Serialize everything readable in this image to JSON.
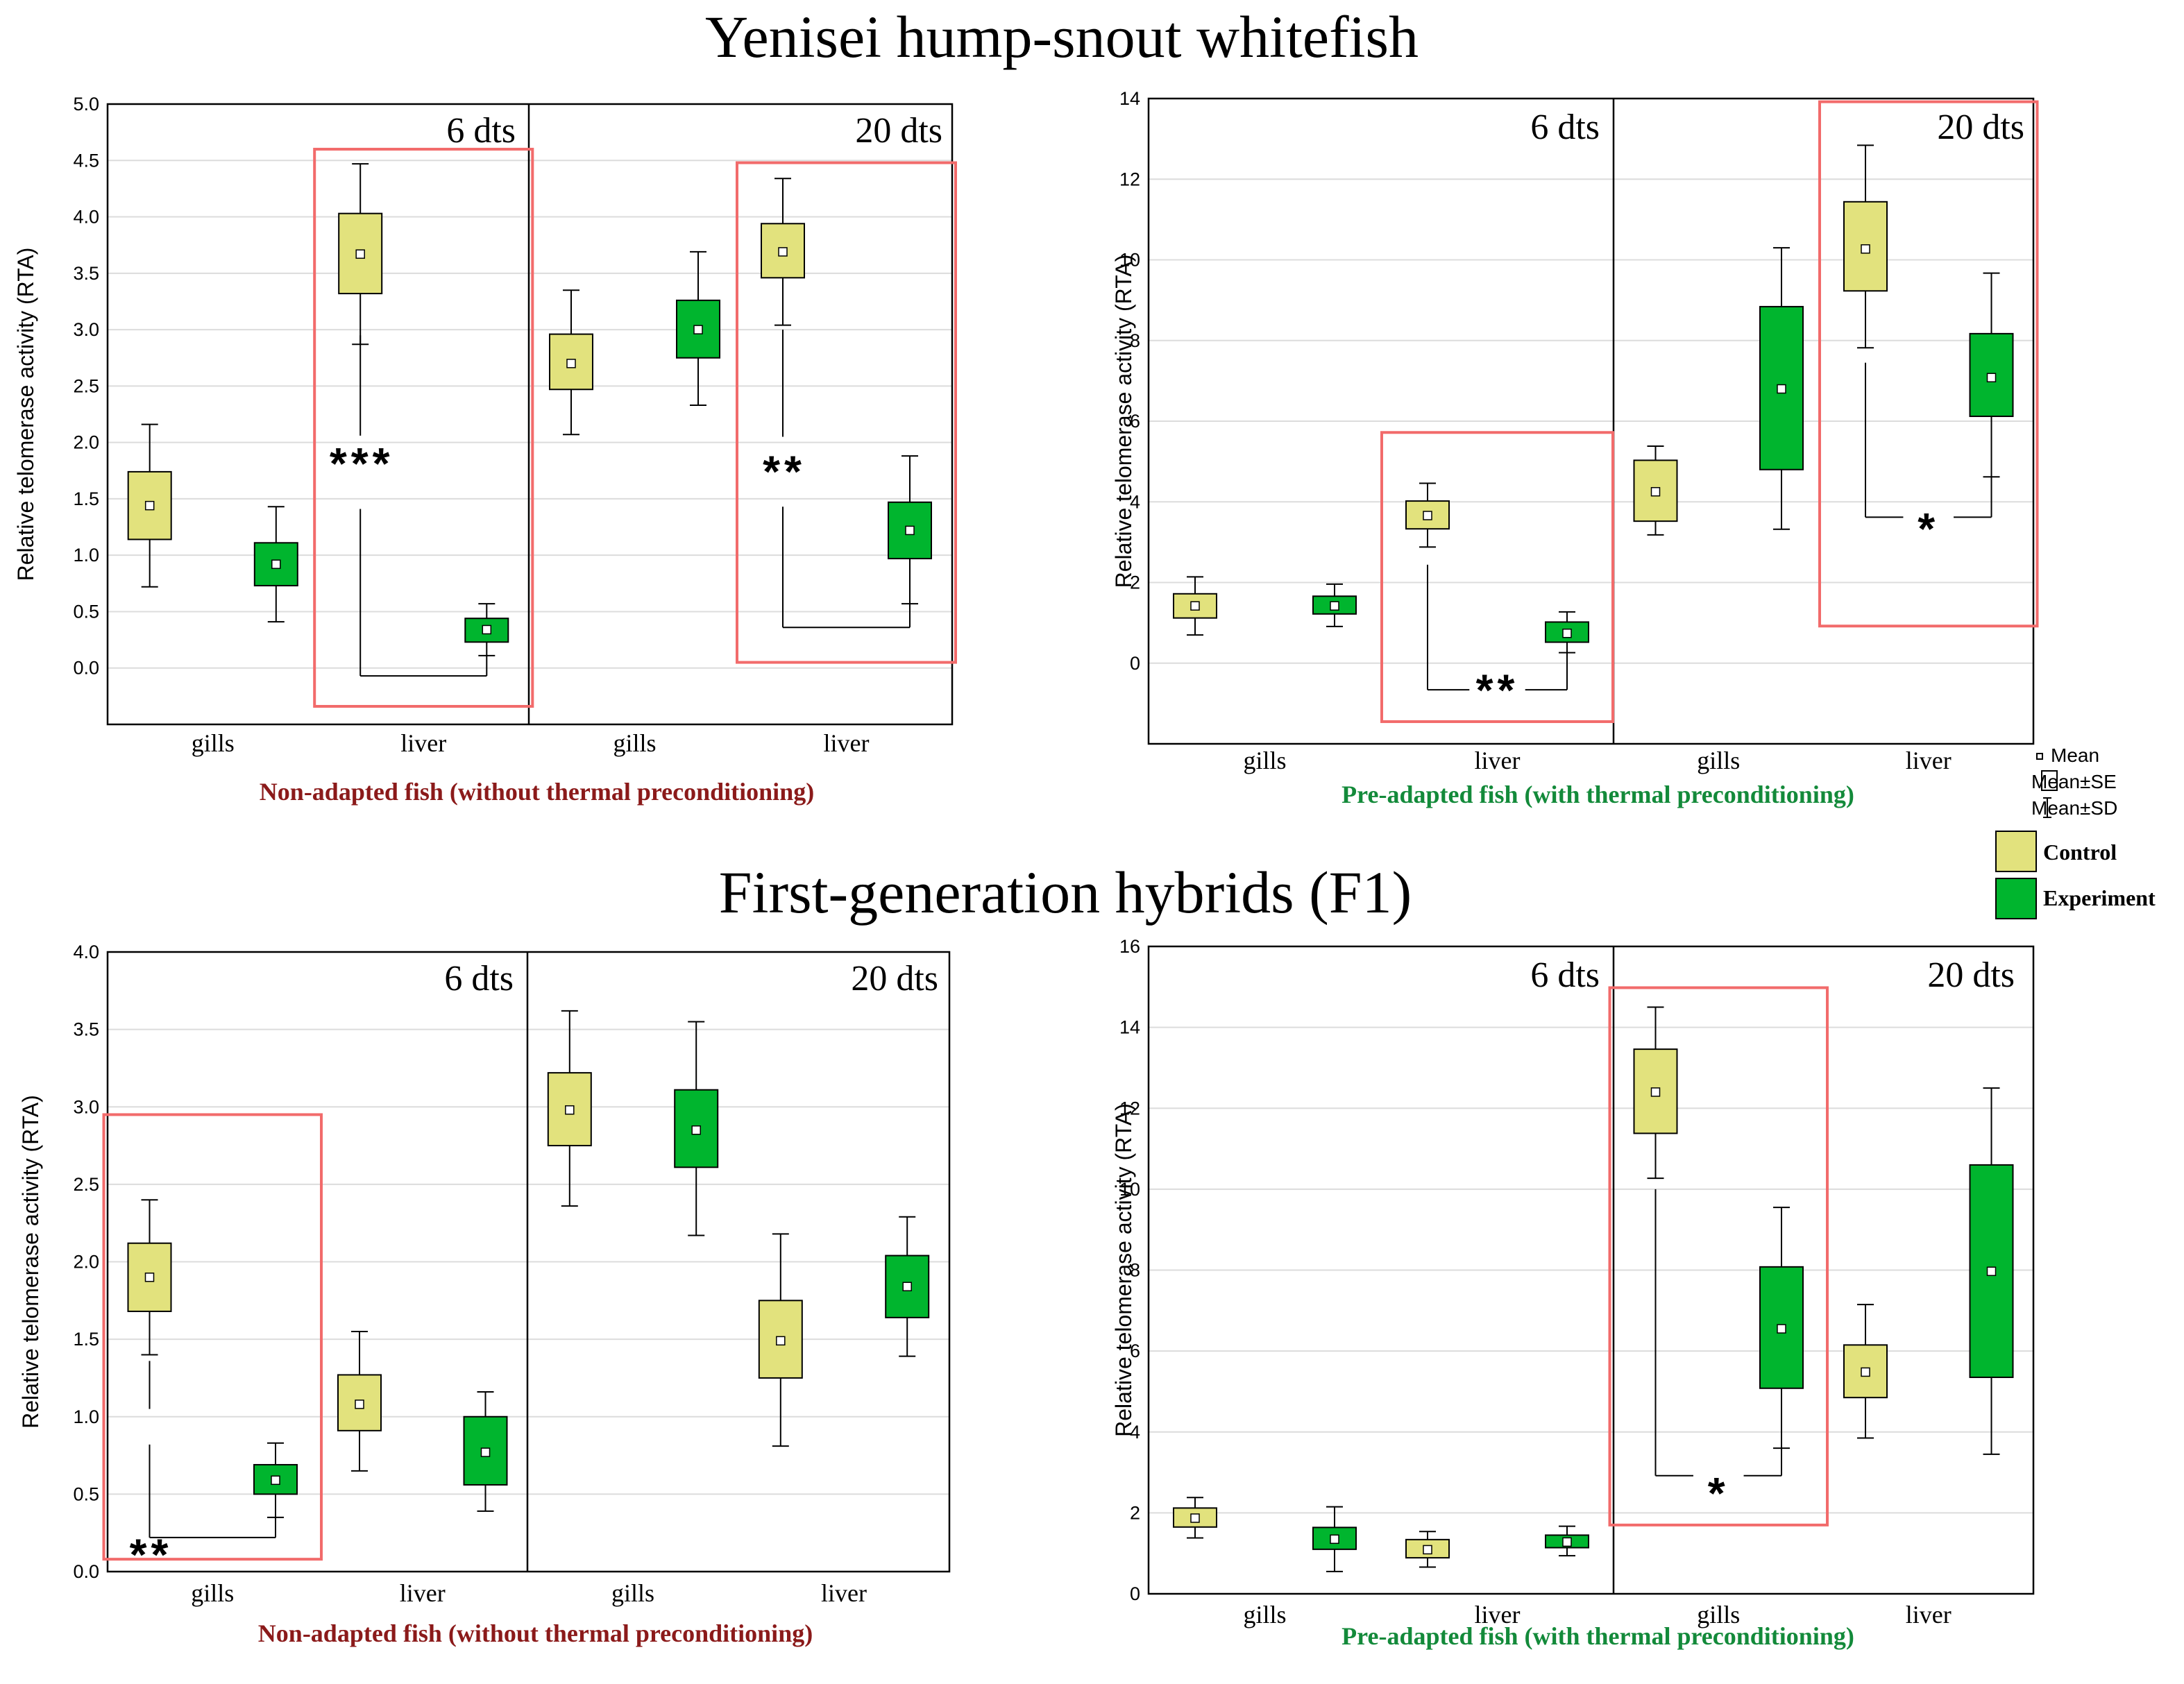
{
  "colors": {
    "control": "#e2e27d",
    "experiment": "#00b52e",
    "highlight": "#f26b6b",
    "non_adapted_caption": "#8b1a1a",
    "pre_adapted_caption": "#138a3a",
    "grid": "#dcdcdc",
    "axis": "#000000"
  },
  "titles": {
    "top": "Yenisei hump-snout whitefish",
    "bottom": "First-generation hybrids (F1)"
  },
  "legend": {
    "mean": "Mean",
    "se": "Mean±SE",
    "sd": "Mean±SD",
    "control": "Control",
    "experiment": "Experiment"
  },
  "chart_data": [
    {
      "type": "box",
      "id": "whitefish-non-adapted",
      "ylabel": "Relative telomerase activity (RTA)",
      "caption": "Non-adapted fish (without thermal preconditioning)",
      "caption_color": "non_adapted",
      "yrange": [
        -0.5,
        5.0
      ],
      "yticks": [
        0,
        0.5,
        1.0,
        1.5,
        2.0,
        2.5,
        3.0,
        3.5,
        4.0,
        4.5,
        5.0
      ],
      "tick_labels": [
        "0.0",
        "0.5",
        "1.0",
        "1.5",
        "2.0",
        "2.5",
        "3.0",
        "3.5",
        "4.0",
        "4.5",
        "5.0"
      ],
      "periods": [
        "6 dts",
        "20 dts"
      ],
      "categories": [
        "gills",
        "liver",
        "gills",
        "liver"
      ],
      "boxes": [
        {
          "group": "control",
          "mean": 1.44,
          "se_low": 1.14,
          "se_high": 1.74,
          "sd_low": 0.72,
          "sd_high": 2.16
        },
        {
          "group": "experiment",
          "mean": 0.92,
          "se_low": 0.73,
          "se_high": 1.11,
          "sd_low": 0.41,
          "sd_high": 1.43
        },
        {
          "group": "control",
          "mean": 3.67,
          "se_low": 3.32,
          "se_high": 4.03,
          "sd_low": 2.87,
          "sd_high": 4.47
        },
        {
          "group": "experiment",
          "mean": 0.34,
          "se_low": 0.23,
          "se_high": 0.44,
          "sd_low": 0.11,
          "sd_high": 0.57
        },
        {
          "group": "control",
          "mean": 2.7,
          "se_low": 2.47,
          "se_high": 2.96,
          "sd_low": 2.07,
          "sd_high": 3.35
        },
        {
          "group": "experiment",
          "mean": 3.0,
          "se_low": 2.75,
          "se_high": 3.26,
          "sd_low": 2.33,
          "sd_high": 3.69
        },
        {
          "group": "control",
          "mean": 3.69,
          "se_low": 3.46,
          "se_high": 3.94,
          "sd_low": 3.04,
          "sd_high": 4.34
        },
        {
          "group": "experiment",
          "mean": 1.22,
          "se_low": 0.97,
          "se_high": 1.47,
          "sd_low": 0.57,
          "sd_high": 1.88
        }
      ],
      "highlights": [
        {
          "from": 2,
          "to": 3,
          "ylow": -0.34,
          "yhigh": 4.6
        },
        {
          "from": 6,
          "to": 7,
          "ylow": 0.05,
          "yhigh": 4.48
        }
      ],
      "significance": [
        {
          "a": 2,
          "b": 3,
          "label": "***",
          "ylow": -0.07,
          "yfrom": 2.95,
          "label_y": 1.8,
          "gap_top": 2.06,
          "gap_bottom": 1.41
        },
        {
          "a": 6,
          "b": 7,
          "label": "**",
          "ylow": 0.36,
          "yfrom": 3.0,
          "label_y": 1.73,
          "gap_top": 2.05,
          "gap_bottom": 1.43
        }
      ]
    },
    {
      "type": "box",
      "id": "whitefish-pre-adapted",
      "ylabel": "Relative telomerase activity (RTA)",
      "caption": "Pre-adapted fish (with thermal preconditioning)",
      "caption_color": "pre_adapted",
      "yrange": [
        -2,
        14
      ],
      "yticks": [
        0,
        2,
        4,
        6,
        8,
        10,
        12,
        14
      ],
      "tick_labels": [
        "0",
        "2",
        "4",
        "6",
        "8",
        "10",
        "12",
        "14"
      ],
      "periods": [
        "6 dts",
        "20 dts"
      ],
      "categories": [
        "gills",
        "liver",
        "gills",
        "liver"
      ],
      "boxes": [
        {
          "group": "control",
          "mean": 1.42,
          "se_low": 1.12,
          "se_high": 1.72,
          "sd_low": 0.7,
          "sd_high": 2.14
        },
        {
          "group": "experiment",
          "mean": 1.42,
          "se_low": 1.22,
          "se_high": 1.66,
          "sd_low": 0.91,
          "sd_high": 1.96
        },
        {
          "group": "control",
          "mean": 3.66,
          "se_low": 3.33,
          "se_high": 4.02,
          "sd_low": 2.88,
          "sd_high": 4.46
        },
        {
          "group": "experiment",
          "mean": 0.74,
          "se_low": 0.52,
          "se_high": 1.02,
          "sd_low": 0.26,
          "sd_high": 1.27
        },
        {
          "group": "control",
          "mean": 4.25,
          "se_low": 3.52,
          "se_high": 5.03,
          "sd_low": 3.18,
          "sd_high": 5.38
        },
        {
          "group": "experiment",
          "mean": 6.8,
          "se_low": 4.8,
          "se_high": 8.84,
          "sd_low": 3.32,
          "sd_high": 10.3
        },
        {
          "group": "control",
          "mean": 10.27,
          "se_low": 9.23,
          "se_high": 11.44,
          "sd_low": 7.82,
          "sd_high": 12.84
        },
        {
          "group": "experiment",
          "mean": 7.08,
          "se_low": 6.12,
          "se_high": 8.17,
          "sd_low": 4.62,
          "sd_high": 9.67
        }
      ],
      "highlights": [
        {
          "from": 2,
          "to": 3,
          "ylow": -1.45,
          "yhigh": 5.72
        },
        {
          "from": 6,
          "to": 7,
          "ylow": 0.92,
          "yhigh": 13.92
        }
      ],
      "significance": [
        {
          "a": 2,
          "b": 3,
          "label": "**",
          "ylow": -0.66,
          "yfrom": 2.44,
          "label_y": -0.7,
          "gap_top": null,
          "gap_bottom": null
        },
        {
          "a": 6,
          "b": 7,
          "label": "*",
          "ylow": 3.62,
          "yfrom": 7.45,
          "label_y": 3.3,
          "gap_top": null,
          "gap_bottom": null
        }
      ]
    },
    {
      "type": "box",
      "id": "hybrids-non-adapted",
      "ylabel": "Relative telomerase activity (RTA)",
      "caption": "Non-adapted fish (without thermal preconditioning)",
      "caption_color": "non_adapted",
      "yrange": [
        0.0,
        4.0
      ],
      "yticks": [
        0,
        0.5,
        1.0,
        1.5,
        2.0,
        2.5,
        3.0,
        3.5,
        4.0
      ],
      "tick_labels": [
        "0.0",
        "0.5",
        "1.0",
        "1.5",
        "2.0",
        "2.5",
        "3.0",
        "3.5",
        "4.0"
      ],
      "periods": [
        "6 dts",
        "20 dts"
      ],
      "categories": [
        "gills",
        "liver",
        "gills",
        "liver"
      ],
      "boxes": [
        {
          "group": "control",
          "mean": 1.9,
          "se_low": 1.68,
          "se_high": 2.12,
          "sd_low": 1.4,
          "sd_high": 2.4
        },
        {
          "group": "experiment",
          "mean": 0.59,
          "se_low": 0.5,
          "se_high": 0.69,
          "sd_low": 0.35,
          "sd_high": 0.83
        },
        {
          "group": "control",
          "mean": 1.08,
          "se_low": 0.91,
          "se_high": 1.27,
          "sd_low": 0.65,
          "sd_high": 1.55
        },
        {
          "group": "experiment",
          "mean": 0.77,
          "se_low": 0.56,
          "se_high": 1.0,
          "sd_low": 0.39,
          "sd_high": 1.16
        },
        {
          "group": "control",
          "mean": 2.98,
          "se_low": 2.75,
          "se_high": 3.22,
          "sd_low": 2.36,
          "sd_high": 3.62
        },
        {
          "group": "experiment",
          "mean": 2.85,
          "se_low": 2.61,
          "se_high": 3.11,
          "sd_low": 2.17,
          "sd_high": 3.55
        },
        {
          "group": "control",
          "mean": 1.49,
          "se_low": 1.25,
          "se_high": 1.75,
          "sd_low": 0.81,
          "sd_high": 2.18
        },
        {
          "group": "experiment",
          "mean": 1.84,
          "se_low": 1.64,
          "se_high": 2.04,
          "sd_low": 1.39,
          "sd_high": 2.29
        }
      ],
      "highlights": [
        {
          "from": 0,
          "to": 1,
          "ylow": 0.08,
          "yhigh": 2.95
        }
      ],
      "significance": [
        {
          "a": 0,
          "b": 1,
          "label": "**",
          "ylow": 0.22,
          "yfrom": 1.36,
          "label_y": 0.1,
          "gap_top": 1.05,
          "gap_bottom": 0.82
        }
      ]
    },
    {
      "type": "box",
      "id": "hybrids-pre-adapted",
      "ylabel": "Relative telomerase activity (RTA)",
      "caption": "Pre-adapted fish (with thermal preconditioning)",
      "caption_color": "pre_adapted",
      "yrange": [
        0,
        16
      ],
      "yticks": [
        0,
        2,
        4,
        6,
        8,
        10,
        12,
        14,
        16
      ],
      "tick_labels": [
        "0",
        "2",
        "4",
        "6",
        "8",
        "10",
        "12",
        "14",
        "16"
      ],
      "periods": [
        "6 dts",
        "20 dts"
      ],
      "categories": [
        "gills",
        "liver",
        "gills",
        "liver"
      ],
      "boxes": [
        {
          "group": "control",
          "mean": 1.87,
          "se_low": 1.65,
          "se_high": 2.12,
          "sd_low": 1.38,
          "sd_high": 2.38
        },
        {
          "group": "experiment",
          "mean": 1.35,
          "se_low": 1.1,
          "se_high": 1.64,
          "sd_low": 0.55,
          "sd_high": 2.15
        },
        {
          "group": "control",
          "mean": 1.09,
          "se_low": 0.89,
          "se_high": 1.34,
          "sd_low": 0.66,
          "sd_high": 1.54
        },
        {
          "group": "experiment",
          "mean": 1.28,
          "se_low": 1.14,
          "se_high": 1.45,
          "sd_low": 0.94,
          "sd_high": 1.67
        },
        {
          "group": "control",
          "mean": 12.4,
          "se_low": 11.38,
          "se_high": 13.46,
          "sd_low": 10.27,
          "sd_high": 14.5
        },
        {
          "group": "experiment",
          "mean": 6.55,
          "se_low": 5.08,
          "se_high": 8.08,
          "sd_low": 3.6,
          "sd_high": 9.55
        },
        {
          "group": "control",
          "mean": 5.48,
          "se_low": 4.85,
          "se_high": 6.15,
          "sd_low": 3.85,
          "sd_high": 7.15
        },
        {
          "group": "experiment",
          "mean": 7.97,
          "se_low": 5.35,
          "se_high": 10.6,
          "sd_low": 3.45,
          "sd_high": 12.5
        }
      ],
      "highlights": [
        {
          "from": 4,
          "to": 5,
          "ylow": 1.7,
          "yhigh": 14.98
        }
      ],
      "significance": [
        {
          "a": 4,
          "b": 5,
          "label": "*",
          "ylow": 2.92,
          "yfrom": 10.0,
          "label_y": 2.45,
          "gap_top": null,
          "gap_bottom": null
        }
      ]
    }
  ]
}
